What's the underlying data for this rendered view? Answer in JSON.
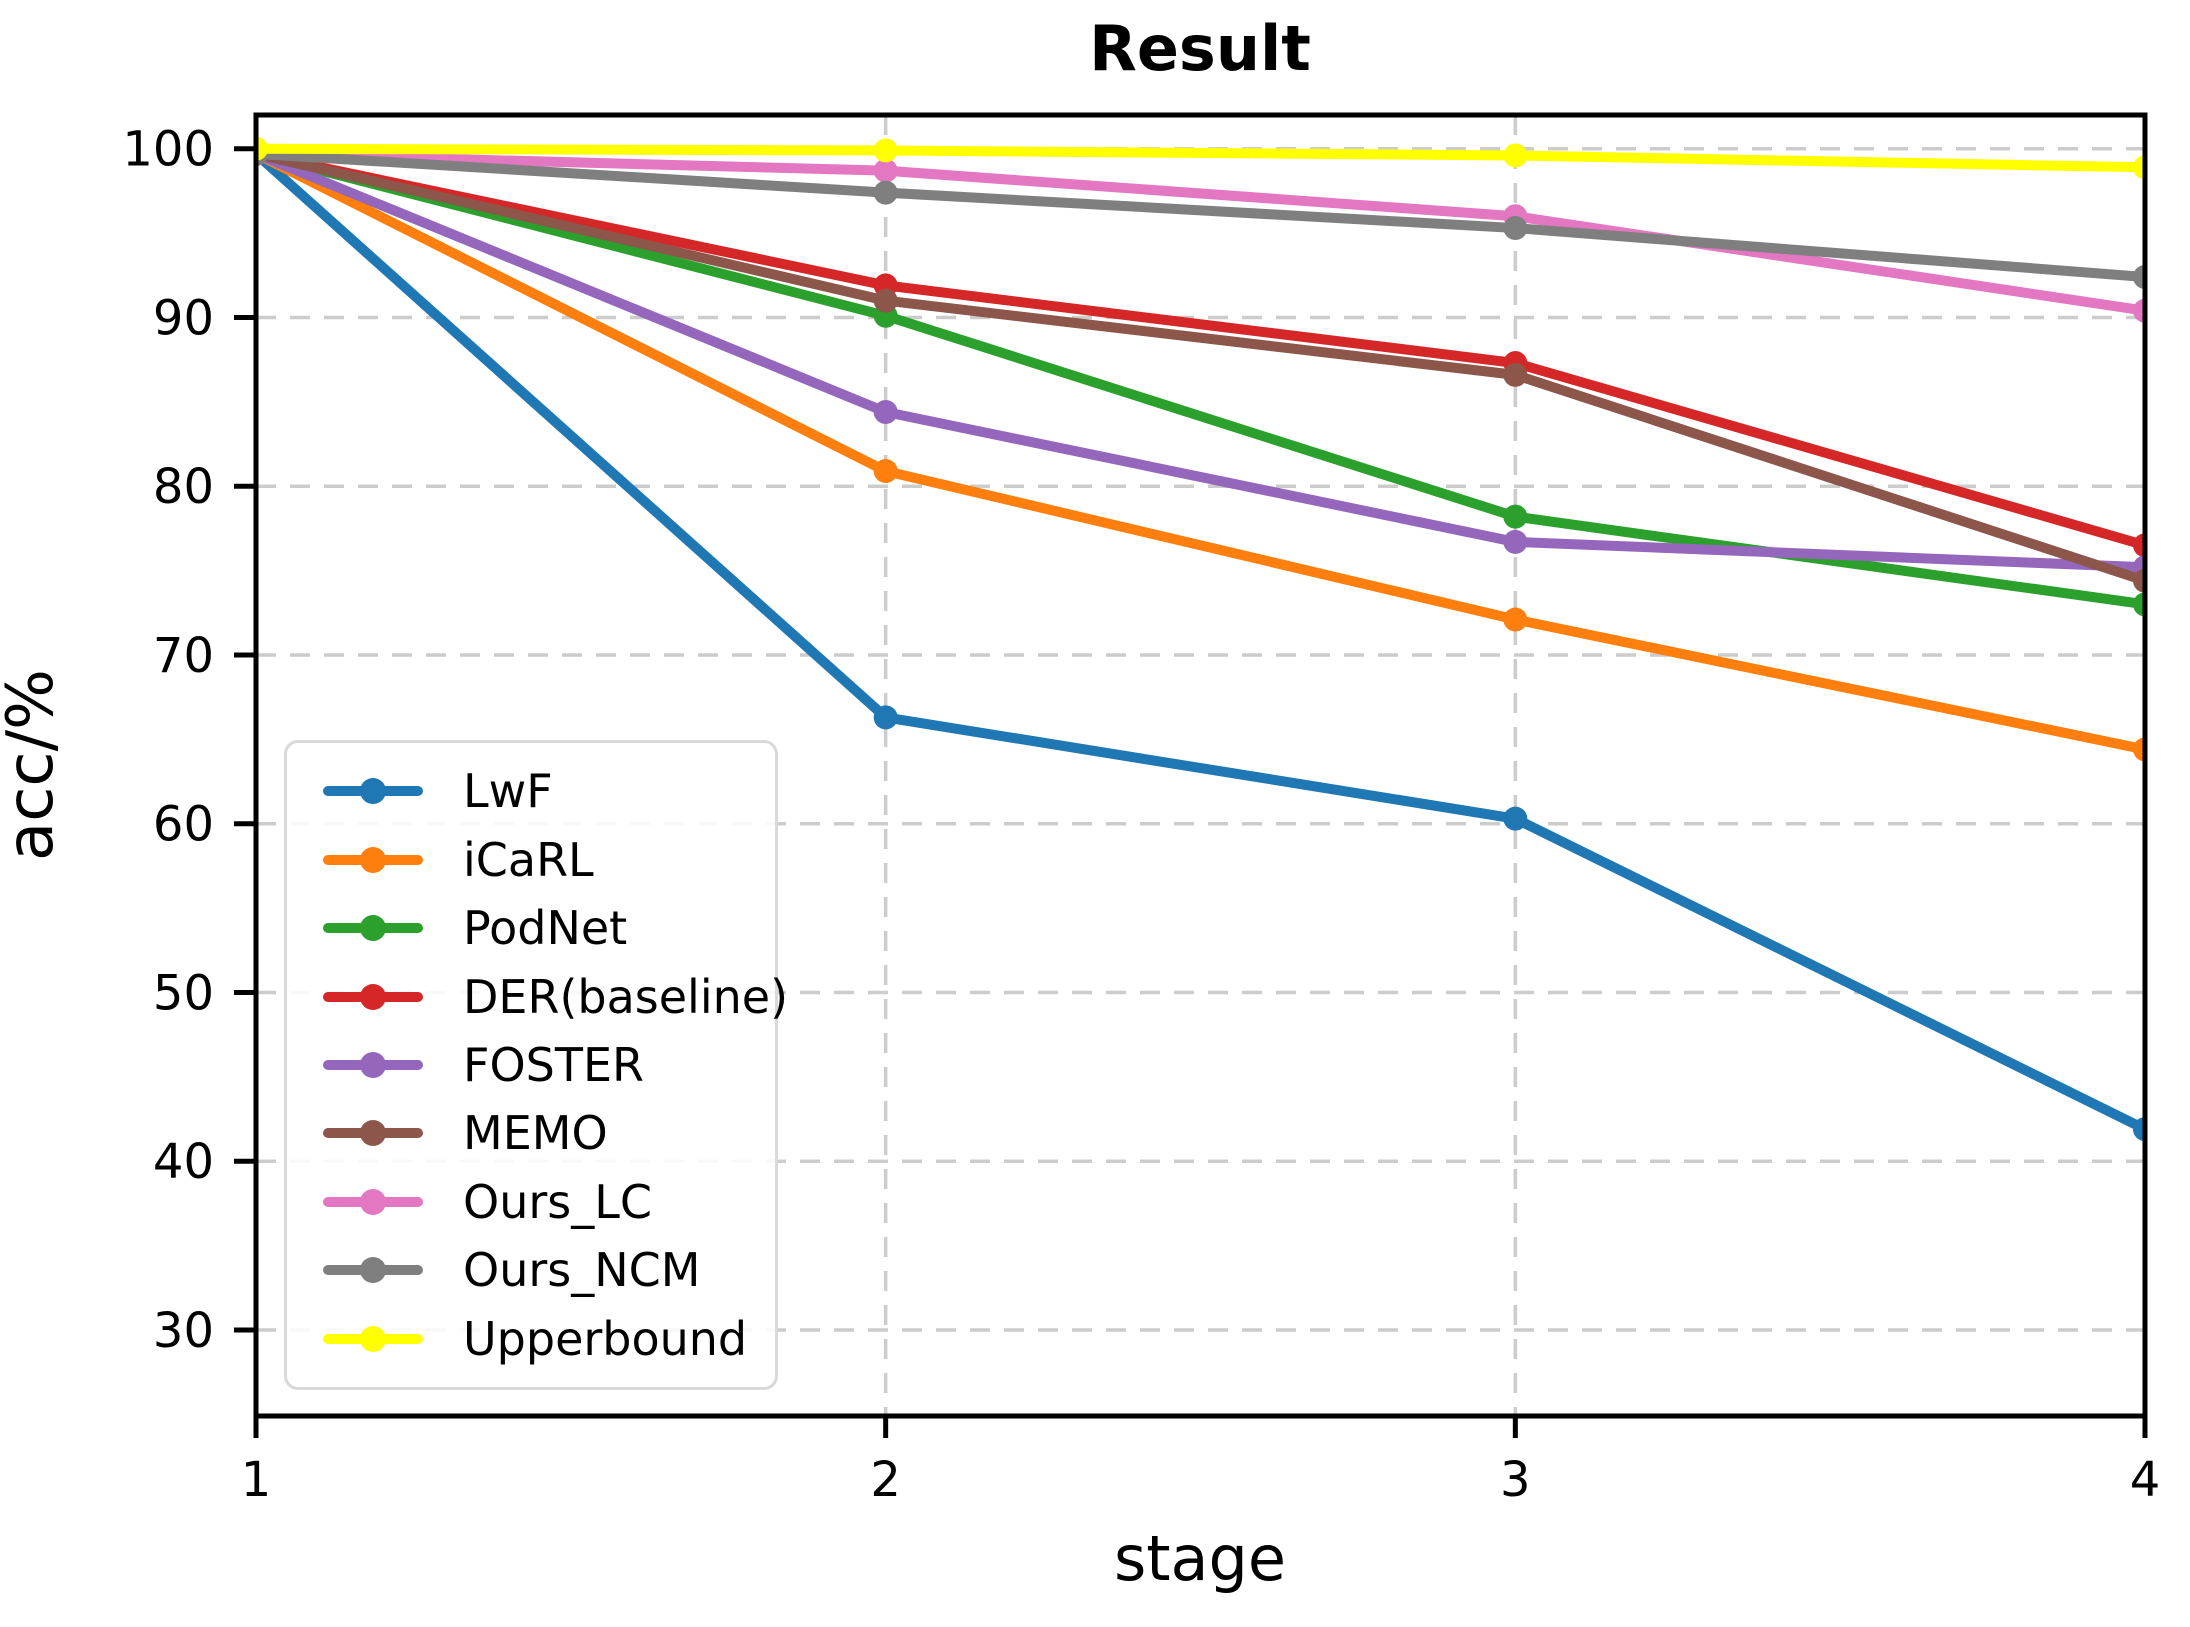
{
  "chart_data": {
    "type": "line",
    "title": "Result",
    "xlabel": "stage",
    "ylabel": "acc/%",
    "x": [
      1,
      2,
      3,
      4
    ],
    "xticks": [
      "1",
      "2",
      "3",
      "4"
    ],
    "yticks": [
      30,
      40,
      50,
      60,
      70,
      80,
      90,
      100
    ],
    "xlim": [
      1,
      4
    ],
    "ylim": [
      24.9,
      102.0
    ],
    "grid": "dashed, both axes, light gray",
    "legend_position": "lower left inside plot",
    "marker": "circle",
    "series": [
      {
        "name": "LwF",
        "color": "#1f77b4",
        "values": [
          99.7,
          66.3,
          60.3,
          41.9
        ]
      },
      {
        "name": "iCaRL",
        "color": "#ff7f0e",
        "values": [
          99.7,
          80.9,
          72.1,
          64.4
        ]
      },
      {
        "name": "PodNet",
        "color": "#2ca02c",
        "values": [
          99.7,
          90.1,
          78.2,
          73.0
        ]
      },
      {
        "name": "DER(baseline)",
        "color": "#d62728",
        "values": [
          99.7,
          91.9,
          87.3,
          76.5
        ]
      },
      {
        "name": "FOSTER",
        "color": "#9467bd",
        "values": [
          99.7,
          84.4,
          76.7,
          75.2
        ]
      },
      {
        "name": "MEMO",
        "color": "#8c564b",
        "values": [
          99.7,
          91.0,
          86.6,
          74.4
        ]
      },
      {
        "name": "Ours_LC",
        "color": "#e377c2",
        "values": [
          99.7,
          98.7,
          96.0,
          90.4
        ]
      },
      {
        "name": "Ours_NCM",
        "color": "#7f7f7f",
        "values": [
          99.7,
          97.4,
          95.3,
          92.4
        ]
      },
      {
        "name": "Upperbound",
        "color": "#ffff00",
        "values": [
          100.0,
          99.9,
          99.6,
          98.9
        ]
      }
    ],
    "axis_color": "#000000",
    "grid_color": "#cccccc"
  }
}
